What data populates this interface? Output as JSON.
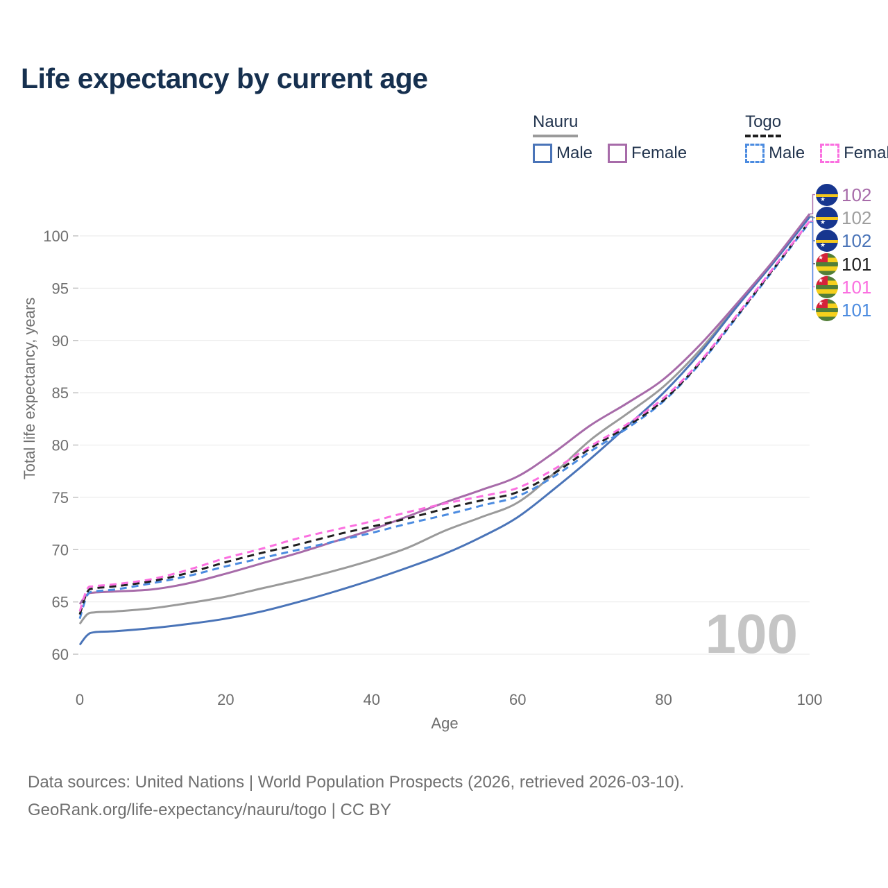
{
  "header": {
    "title": "Life expectancy by current age"
  },
  "legend": {
    "groups": [
      {
        "title": "Nauru",
        "line_style": "solid",
        "underline_color": "#9a9a9a",
        "items": [
          {
            "label": "Male",
            "color": "#4a74b8",
            "dashed": false
          },
          {
            "label": "Female",
            "color": "#a76ba9",
            "dashed": false
          }
        ]
      },
      {
        "title": "Togo",
        "line_style": "dashed",
        "underline_color": "#1f1f1f",
        "items": [
          {
            "label": "Male",
            "color": "#4b8be0",
            "dashed": true
          },
          {
            "label": "Female",
            "color": "#fb6fe0",
            "dashed": true
          }
        ]
      }
    ]
  },
  "chart_data": {
    "type": "line",
    "title": "Life expectancy by current age",
    "xlabel": "Age",
    "ylabel": "Total life expectancy, years",
    "xlim": [
      0,
      100
    ],
    "ylim": [
      60,
      103
    ],
    "x_ticks": [
      0,
      20,
      40,
      60,
      80,
      100
    ],
    "y_ticks": [
      60,
      65,
      70,
      75,
      80,
      85,
      90,
      95,
      100
    ],
    "grid": "horizontal",
    "legend_position": "top-right",
    "watermark": "100",
    "x": [
      0,
      1,
      2,
      5,
      10,
      15,
      20,
      25,
      30,
      35,
      40,
      45,
      50,
      55,
      60,
      65,
      70,
      75,
      80,
      85,
      90,
      95,
      100
    ],
    "series": [
      {
        "name": "Nauru Female",
        "country": "Nauru",
        "sex": "Female",
        "color": "#a76ba9",
        "dashed": false,
        "z": 2,
        "values": [
          64.8,
          65.7,
          65.9,
          66.0,
          66.2,
          66.8,
          67.7,
          68.7,
          69.7,
          70.8,
          71.9,
          73.2,
          74.5,
          75.7,
          77.0,
          79.3,
          81.9,
          84.0,
          86.3,
          89.6,
          93.5,
          97.6,
          102.1
        ]
      },
      {
        "name": "Nauru Both sexes",
        "country": "Nauru",
        "sex": "Both",
        "color": "#9a9a9a",
        "dashed": false,
        "z": 0,
        "values": [
          62.9,
          63.8,
          64.0,
          64.1,
          64.4,
          64.9,
          65.5,
          66.3,
          67.1,
          68.0,
          69.0,
          70.2,
          71.8,
          73.1,
          74.5,
          77.3,
          80.5,
          83.0,
          85.6,
          89.1,
          93.3,
          97.5,
          101.9
        ]
      },
      {
        "name": "Nauru Male",
        "country": "Nauru",
        "sex": "Male",
        "color": "#4a74b8",
        "dashed": false,
        "z": 1,
        "values": [
          60.9,
          61.8,
          62.1,
          62.2,
          62.5,
          62.9,
          63.4,
          64.1,
          65.0,
          66.0,
          67.1,
          68.3,
          69.6,
          71.2,
          73.1,
          75.8,
          78.7,
          81.8,
          85.0,
          88.8,
          93.2,
          97.4,
          101.8
        ]
      },
      {
        "name": "Togo Both sexes",
        "country": "Togo",
        "sex": "Both",
        "color": "#1f1f1f",
        "dashed": true,
        "z": 4,
        "values": [
          63.8,
          65.9,
          66.3,
          66.5,
          67.0,
          67.8,
          68.8,
          69.7,
          70.5,
          71.4,
          72.2,
          73.0,
          73.9,
          74.7,
          75.5,
          77.3,
          79.7,
          81.8,
          84.3,
          87.9,
          92.3,
          96.8,
          101.4
        ]
      },
      {
        "name": "Togo Female",
        "country": "Togo",
        "sex": "Female",
        "color": "#fb6fe0",
        "dashed": true,
        "z": 5,
        "values": [
          64.1,
          66.2,
          66.5,
          66.7,
          67.2,
          68.1,
          69.2,
          70.1,
          71.1,
          71.9,
          72.7,
          73.6,
          74.4,
          75.1,
          75.9,
          77.7,
          79.9,
          82.0,
          84.5,
          88.0,
          92.4,
          96.9,
          101.4
        ]
      },
      {
        "name": "Togo Male",
        "country": "Togo",
        "sex": "Male",
        "color": "#4b8be0",
        "dashed": true,
        "z": 3,
        "values": [
          63.4,
          65.6,
          66.0,
          66.2,
          66.8,
          67.5,
          68.4,
          69.2,
          70.0,
          70.8,
          71.6,
          72.5,
          73.3,
          74.2,
          75.1,
          77.0,
          79.4,
          81.6,
          84.2,
          87.8,
          92.2,
          96.7,
          101.3
        ]
      }
    ],
    "end_labels": [
      {
        "value": "102",
        "flag": "nauru",
        "color": "#a76ba9",
        "end_value": 102.1
      },
      {
        "value": "102",
        "flag": "nauru",
        "color": "#9e9e9e",
        "end_value": 101.9
      },
      {
        "value": "102",
        "flag": "nauru",
        "color": "#4a74b8",
        "end_value": 101.8
      },
      {
        "value": "101",
        "flag": "togo",
        "color": "#1f1f1f",
        "end_value": 101.4
      },
      {
        "value": "101",
        "flag": "togo",
        "color": "#fb6fe0",
        "end_value": 101.4
      },
      {
        "value": "101",
        "flag": "togo",
        "color": "#4b8be0",
        "end_value": 101.3
      }
    ]
  },
  "footer": {
    "line1": "Data sources: United Nations | World Population Prospects (2026, retrieved 2026-03-10).",
    "line2": "GeoRank.org/life-expectancy/nauru/togo | CC BY"
  }
}
